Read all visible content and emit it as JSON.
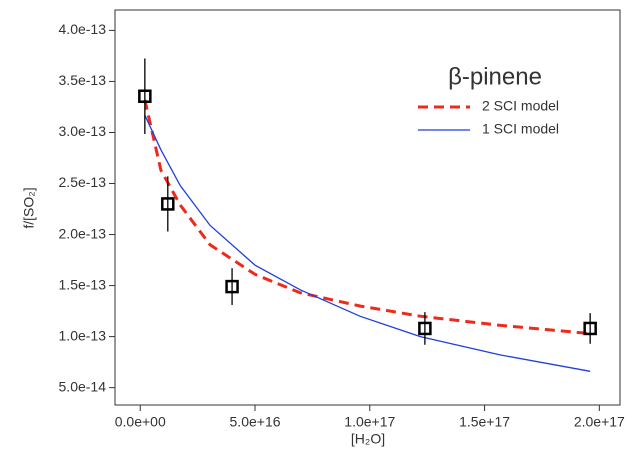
{
  "chart_data": {
    "type": "line",
    "x_label": "[H₂O]",
    "y_label": "f/[SO₂]",
    "annotation": "β-pinene",
    "xlim": [
      -1.1e+16,
      2.09e+17
    ],
    "ylim": [
      3.3e-14,
      4.2e-13
    ],
    "xticks": [
      {
        "value": 0,
        "label": "0.0e+00"
      },
      {
        "value": 5e+16,
        "label": "5.0e+16"
      },
      {
        "value": 1e+17,
        "label": "1.0e+17"
      },
      {
        "value": 1.5e+17,
        "label": "1.5e+17"
      },
      {
        "value": 2e+17,
        "label": "2.0e+17"
      }
    ],
    "yticks": [
      {
        "value": 5e-14,
        "label": "5.0e-14"
      },
      {
        "value": 1e-13,
        "label": "1.0e-13"
      },
      {
        "value": 1.5e-13,
        "label": "1.5e-13"
      },
      {
        "value": 2e-13,
        "label": "2.0e-13"
      },
      {
        "value": 2.5e-13,
        "label": "2.5e-13"
      },
      {
        "value": 3e-13,
        "label": "3.0e-13"
      },
      {
        "value": 3.5e-13,
        "label": "3.5e-13"
      },
      {
        "value": 4e-13,
        "label": "4.0e-13"
      }
    ],
    "legend": "upper right",
    "points": {
      "color": "#000000",
      "x": [
        2000000000000000.0,
        1.2e+16,
        4e+16,
        1.24e+17,
        1.96e+17
      ],
      "values": [
        3.355e-13,
        2.3e-13,
        1.49e-13,
        1.08e-13,
        1.08e-13
      ],
      "errors": [
        3.7e-14,
        2.7e-14,
        1.8e-14,
        1.6e-14,
        1.5e-14
      ]
    },
    "series": [
      {
        "name": "2 SCI model",
        "color": "#ee2a1b",
        "dashed": true,
        "x": [
          2000000000000000.0,
          9000000000000000.0,
          1.74e+16,
          3.04e+16,
          5e+16,
          6.96e+16,
          9.57e+16,
          1.22e+17,
          1.57e+17,
          1.96e+17
        ],
        "values": [
          3.32e-13,
          2.63e-13,
          2.29e-13,
          1.9e-13,
          1.61e-13,
          1.43e-13,
          1.3e-13,
          1.2e-13,
          1.11e-13,
          1.03e-13
        ]
      },
      {
        "name": "1 SCI model",
        "color": "#1f3fe0",
        "dashed": false,
        "x": [
          2000000000000000.0,
          9000000000000000.0,
          1.74e+16,
          3.04e+16,
          5e+16,
          6.96e+16,
          9.57e+16,
          1.22e+17,
          1.57e+17,
          1.96e+17
        ],
        "values": [
          3.17e-13,
          2.83e-13,
          2.48e-13,
          2.09e-13,
          1.7e-13,
          1.46e-13,
          1.2e-13,
          1e-13,
          8.2e-14,
          6.6e-14
        ]
      }
    ]
  }
}
